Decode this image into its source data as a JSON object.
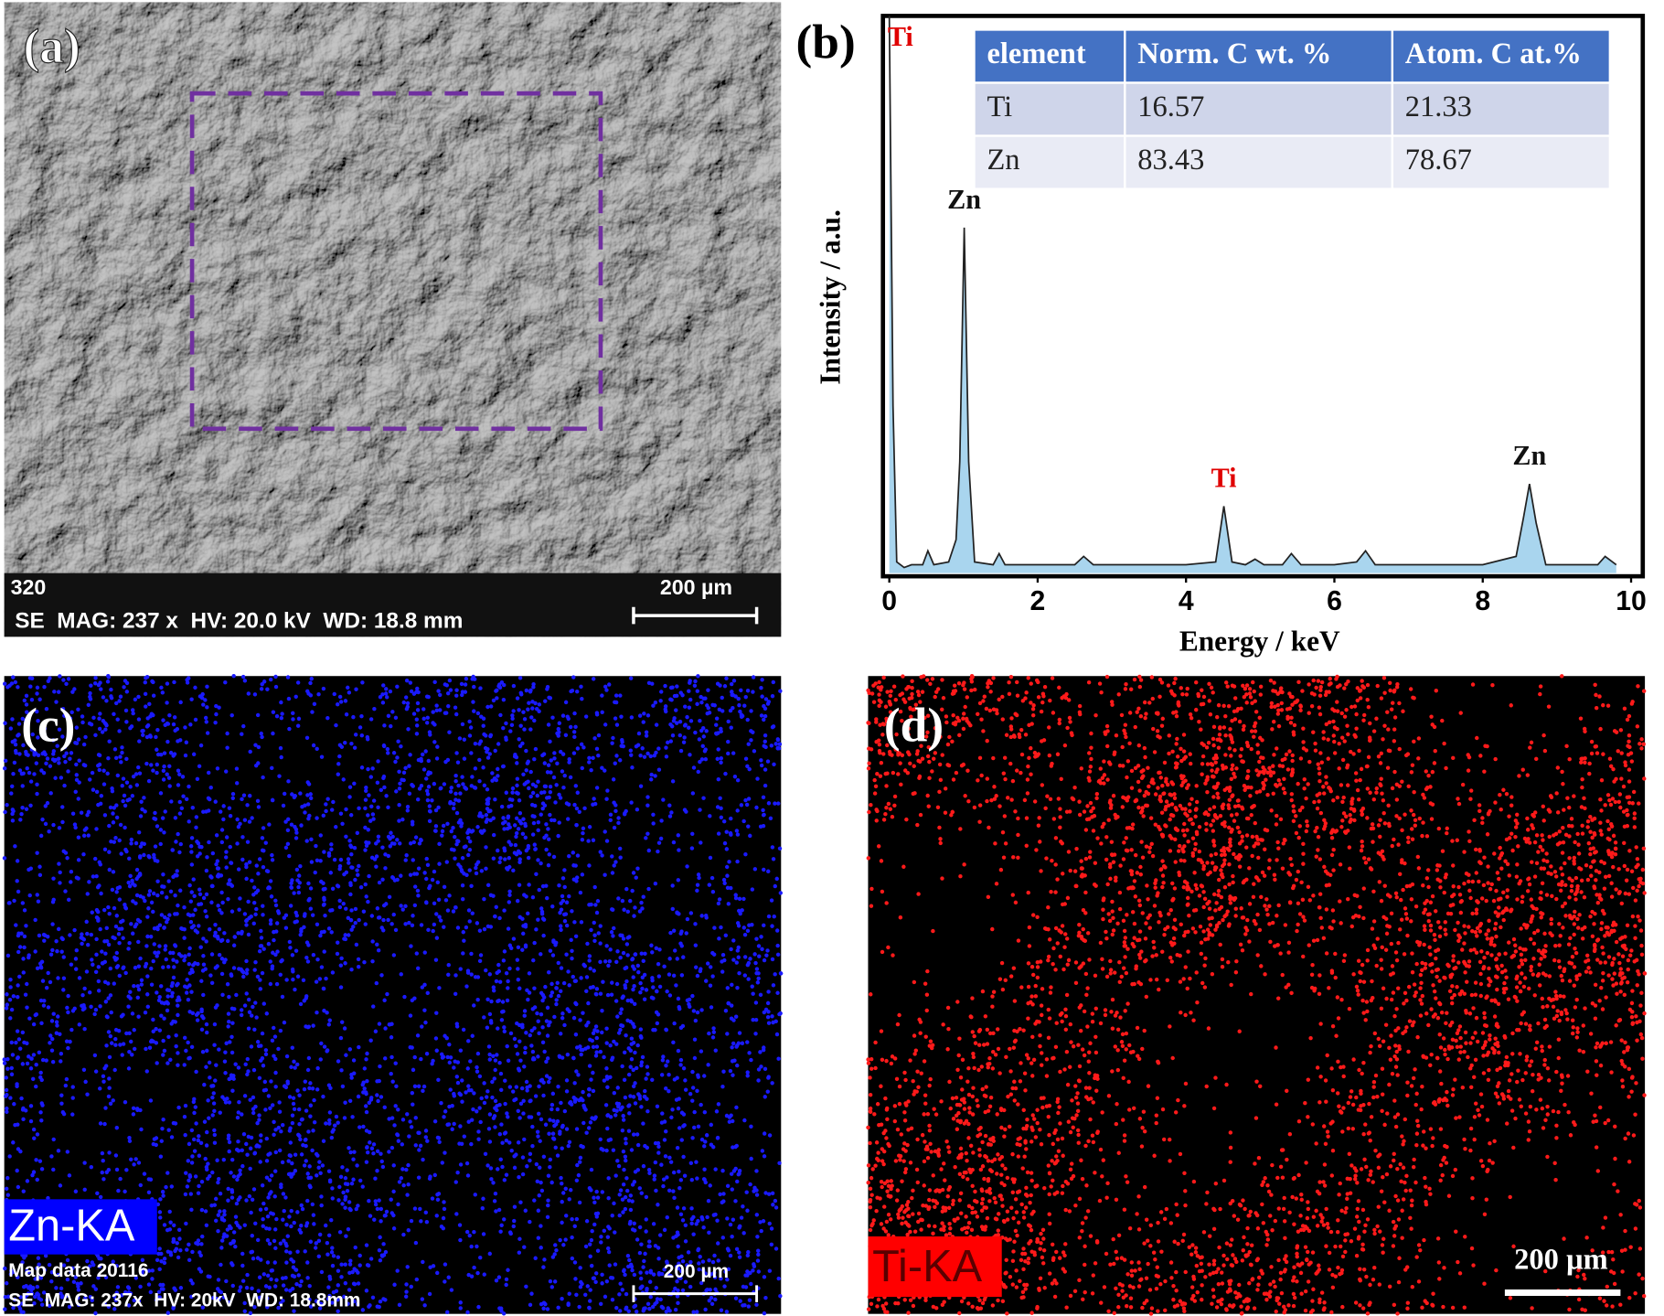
{
  "panels": {
    "a": {
      "label": "(a)",
      "info_top": "320",
      "scale_bar": "200 µm",
      "info": "SE  MAG: 237 x  HV: 20.0 kV  WD: 18.8 mm"
    },
    "c": {
      "label": "(c)",
      "element": "Zn-KA",
      "map_info": "Map data 20116",
      "scale_bar": "200 µm",
      "info": "SE  MAG: 237x  HV: 20kV  WD: 18.8mm"
    },
    "d": {
      "label": "(d)",
      "element": "Ti-KA",
      "scale_bar": "200 µm"
    }
  },
  "chart_data": {
    "type": "line",
    "panel_label": "(b)",
    "x_label": "Energy / keV",
    "y_label": "Intensity / a.u.",
    "x": [
      0,
      0.05,
      0.1,
      0.2,
      0.3,
      0.45,
      0.52,
      0.6,
      0.8,
      0.9,
      0.95,
      1.01,
      1.07,
      1.15,
      1.4,
      1.48,
      1.56,
      2.0,
      2.5,
      2.62,
      2.75,
      3.5,
      4.0,
      4.4,
      4.51,
      4.62,
      4.8,
      4.93,
      5.05,
      5.3,
      5.42,
      5.55,
      6.0,
      6.3,
      6.42,
      6.55,
      7.0,
      7.5,
      8.0,
      8.45,
      8.55,
      8.63,
      8.72,
      8.85,
      9.2,
      9.55,
      9.65,
      9.8
    ],
    "values": [
      100,
      30,
      2,
      1,
      1.5,
      1.5,
      4,
      1.5,
      2,
      6,
      20,
      62,
      20,
      2,
      1.5,
      3.5,
      1.5,
      1.5,
      1.5,
      3,
      1.5,
      1.5,
      1.5,
      2,
      12,
      2,
      1.5,
      2.5,
      1.5,
      1.5,
      3.5,
      1.5,
      1.5,
      2,
      4,
      1.5,
      1.5,
      1.5,
      1.5,
      3,
      10,
      16,
      9,
      1.5,
      1.5,
      1.5,
      3,
      1.5
    ],
    "color": "#222222",
    "fill_color": "#a9d5ee",
    "xlim": [
      0,
      10
    ],
    "xticks": [
      0,
      2,
      4,
      6,
      8,
      10
    ],
    "ylim": [
      0,
      100
    ],
    "annotations": [
      {
        "text": "Ti",
        "x": 0.15,
        "color": "#e00000"
      },
      {
        "text": "Zn",
        "x": 1.01,
        "color": "#111111"
      },
      {
        "text": "Ti",
        "x": 4.51,
        "color": "#e00000"
      },
      {
        "text": "Zn",
        "x": 8.63,
        "color": "#111111"
      }
    ],
    "table": {
      "header": [
        "element",
        "Norm. C wt. %",
        "Atom. C at.%"
      ],
      "rows": [
        [
          "Ti",
          "16.57",
          "21.33"
        ],
        [
          "Zn",
          "83.43",
          "78.67"
        ]
      ]
    }
  }
}
